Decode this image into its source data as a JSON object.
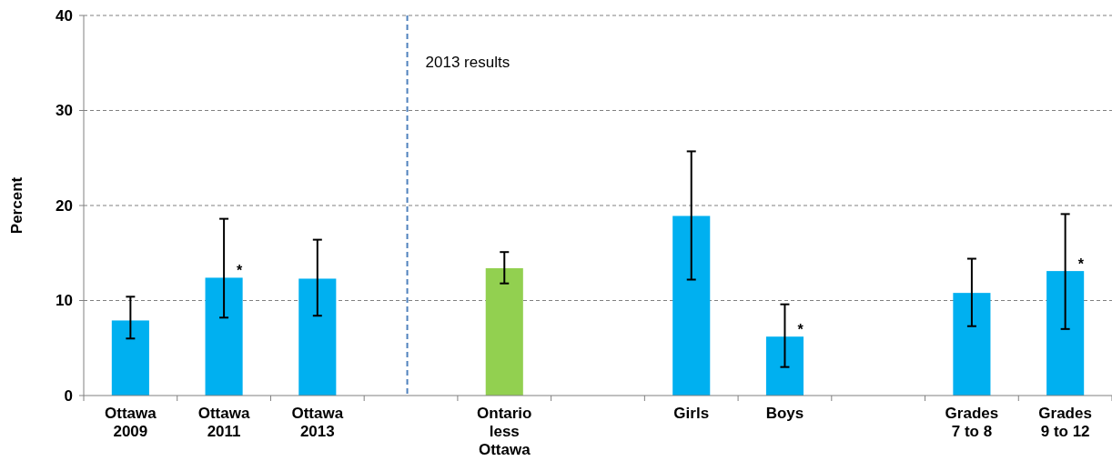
{
  "chart_data": {
    "type": "bar",
    "categories": [
      "Ottawa\n2009",
      "Ottawa\n2011",
      "Ottawa\n2013",
      null,
      "Ontario\nless\nOttawa",
      null,
      "Girls",
      "Boys",
      null,
      "Grades\n7 to 8",
      "Grades\n9 to 12"
    ],
    "values": [
      7.9,
      12.4,
      12.3,
      null,
      13.4,
      null,
      18.9,
      6.2,
      null,
      10.8,
      13.1
    ],
    "colors": [
      "#00b0f0",
      "#00b0f0",
      "#00b0f0",
      null,
      "#92d050",
      null,
      "#00b0f0",
      "#00b0f0",
      null,
      "#00b0f0",
      "#00b0f0"
    ],
    "errors": [
      [
        6.0,
        10.4
      ],
      [
        8.2,
        18.6
      ],
      [
        8.4,
        16.4
      ],
      null,
      [
        11.8,
        15.1
      ],
      null,
      [
        12.2,
        25.7
      ],
      [
        3.0,
        9.6
      ],
      null,
      [
        7.3,
        14.4
      ],
      [
        7.0,
        19.1
      ]
    ],
    "ylabel": "Percent",
    "ylim": [
      0,
      40
    ],
    "yticks": [
      0,
      10,
      20,
      30,
      40
    ],
    "grid": "y",
    "annotations": [
      "2013 results",
      {
        "text": "*",
        "x": "Ottawa\n2011",
        "y": 12.4
      },
      {
        "text": "*",
        "x": "Boys",
        "y": 6.2
      },
      {
        "text": "*",
        "x": "Grades\n9 to 12",
        "y": 13.1
      }
    ]
  }
}
